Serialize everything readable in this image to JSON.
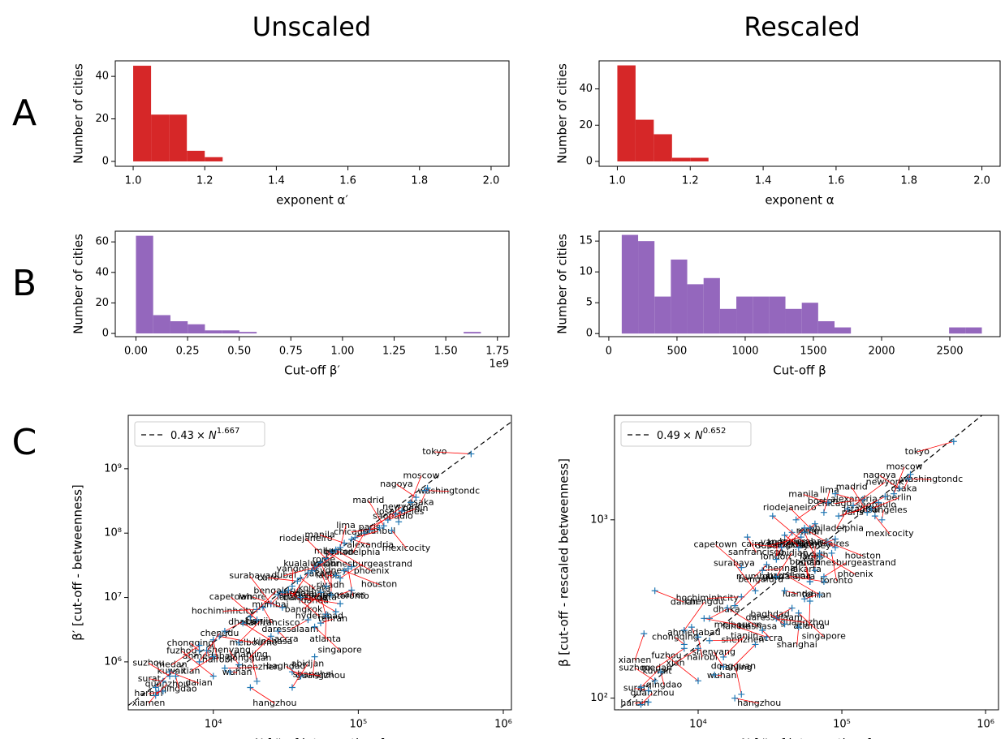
{
  "figure": {
    "columns": [
      "Unscaled",
      "Rescaled"
    ],
    "rows": [
      "A",
      "B",
      "C"
    ]
  },
  "chart_data": [
    {
      "type": "histogram",
      "x_label": "exponent α′",
      "y_label": "Number of cities",
      "color": "#d62728",
      "bins": [
        1.0,
        1.05,
        1.1,
        1.15,
        1.2,
        1.25
      ],
      "values": [
        45,
        22,
        22,
        5,
        2
      ],
      "xlim": [
        0.95,
        2.05
      ],
      "xticks": [
        {
          "value": 1.0,
          "label": "1.0"
        },
        1.2,
        1.4,
        1.6,
        1.8,
        {
          "value": 2.0,
          "label": "2.0"
        }
      ],
      "ylim": [
        -2.3,
        47.3
      ],
      "yticks": [
        0,
        20,
        40
      ]
    },
    {
      "type": "histogram",
      "x_label": "exponent α",
      "y_label": "Number of cities",
      "color": "#d62728",
      "bins": [
        1.0,
        1.05,
        1.1,
        1.15,
        1.2,
        1.25
      ],
      "values": [
        53,
        23,
        15,
        2,
        2
      ],
      "xlim": [
        0.95,
        2.05
      ],
      "xticks": [
        {
          "value": 1.0,
          "label": "1.0"
        },
        1.2,
        1.4,
        1.6,
        1.8,
        {
          "value": 2.0,
          "label": "2.0"
        }
      ],
      "ylim": [
        -2.7,
        55.5
      ],
      "yticks": [
        0,
        20,
        40
      ]
    },
    {
      "type": "histogram",
      "x_label": "Cut-off β′",
      "y_label": "Number of cities",
      "color": "#9467bd",
      "offset_label": "1e9",
      "bins": [
        0,
        0.0835,
        0.167,
        0.2505,
        0.334,
        0.4175,
        0.501,
        0.5845,
        0.668,
        0.7515,
        0.835,
        0.9185,
        1.002,
        1.0855,
        1.169,
        1.2525,
        1.336,
        1.4195,
        1.503,
        1.5865,
        1.67
      ],
      "values": [
        64,
        12,
        8,
        6,
        2,
        2,
        1,
        0,
        0,
        0,
        0,
        0,
        0,
        0,
        0,
        0,
        0,
        0,
        0,
        1
      ],
      "xlim": [
        -0.1,
        1.806
      ],
      "xticks": [
        {
          "value": 0,
          "label": "0.00"
        },
        0.25,
        {
          "value": 0.5,
          "label": "0.50"
        },
        0.75,
        {
          "value": 1,
          "label": "1.00"
        },
        1.25,
        {
          "value": 1.5,
          "label": "1.50"
        },
        1.75
      ],
      "ylim": [
        -2.1,
        67
      ],
      "yticks": [
        0,
        20,
        40,
        60
      ]
    },
    {
      "type": "histogram",
      "x_label": "Cut-off β",
      "y_label": "Number of cities",
      "color": "#9467bd",
      "bins": [
        95,
        215,
        335,
        455,
        575,
        695,
        815,
        935,
        1055,
        1175,
        1295,
        1415,
        1535,
        1655,
        1775,
        1895,
        2015,
        2135,
        2255,
        2375,
        2495,
        2615,
        2735
      ],
      "values": [
        16,
        15,
        6,
        12,
        8,
        9,
        4,
        6,
        6,
        6,
        4,
        5,
        2,
        1,
        0,
        0,
        0,
        0,
        0,
        0,
        1,
        1
      ],
      "xlim": [
        -71,
        2869
      ],
      "xticks": [
        0,
        500,
        1000,
        1500,
        2000,
        2500
      ],
      "ylim": [
        -0.5,
        16.6
      ],
      "yticks": [
        0,
        5,
        10,
        15
      ]
    },
    {
      "type": "scatter",
      "x_label": "N [# of intersections]",
      "y_label": "β′ [cut-off - betweenness]",
      "log_x": true,
      "log_y": true,
      "legend": "upper left",
      "fit": {
        "coef": 0.43,
        "symbol": "× N",
        "exponent": 1.667
      },
      "marker_color": "#1f77b4",
      "leader_color": "#ff0000",
      "label_colors": [
        "#1f77b4",
        "#ff7f0e",
        "#2ca02c",
        "#d62728",
        "#9467bd",
        "#8c564b",
        "#e377c2",
        "#7f7f7f",
        "#bcbd22",
        "#17becf"
      ],
      "xlim": [
        2590,
        1138000
      ],
      "xticks": [
        {
          "value": 10000,
          "label": "10⁴"
        },
        {
          "value": 100000,
          "label": "10⁵"
        },
        {
          "value": 1000000,
          "label": "10⁶"
        }
      ],
      "ylim": [
        180000,
        6760000000
      ],
      "yticks": [
        {
          "value": 1000000,
          "label": "10⁶"
        },
        {
          "value": 10000000,
          "label": "10⁷"
        },
        {
          "value": 100000000,
          "label": "10⁸"
        },
        {
          "value": 1000000000,
          "label": "10⁹"
        }
      ],
      "labels": [
        "tokyo",
        "osaka",
        "washingtondc",
        "nagoya",
        "moscow",
        "paris",
        "saopaulo",
        "berlin",
        "madrid",
        "mexicocity",
        "chicago",
        "losangeles",
        "newyork",
        "philadelphia",
        "alexandria",
        "manila",
        "lima",
        "phoenix",
        "rome",
        "istanbul",
        "riodejaneiro",
        "riyadh",
        "dubai",
        "kualalumpur",
        "boston",
        "london",
        "kolkata",
        "cairo",
        "yangon",
        "hyderabad",
        "mumbai",
        "chennai",
        "milan",
        "toronto",
        "houston",
        "lagos",
        "johannesburgeastrand",
        "surabaya",
        "sanfrancisco",
        "hochiminhcity",
        "jakarta",
        "bengaluru",
        "bangkok",
        "luanda",
        "lahore",
        "sydney",
        "kinshasa",
        "buenosaires",
        "dhaka",
        "capetown",
        "nairobi",
        "melbourne",
        "chongqing",
        "tianjin",
        "dongguan",
        "accra",
        "barcelona",
        "bogota",
        "singapore",
        "daressalaam",
        "tehran",
        "guadalajara",
        "atlanta",
        "dalian",
        "surat",
        "kuwait",
        "xiamen",
        "qingdao",
        "shenzhen",
        "shenyang",
        "chengdu",
        "xian",
        "wuhan",
        "suzhou",
        "nanjing",
        "hangzhou",
        "harbin",
        "quanzhou",
        "fuzhou",
        "shanghai",
        "guangzhou",
        "baghdad",
        "abidjan",
        "medan",
        "ahmedabad"
      ],
      "x": [
        600000,
        300000,
        290000,
        250000,
        230000,
        200000,
        180000,
        160000,
        150000,
        170000,
        140000,
        190000,
        120000,
        110000,
        90000,
        80000,
        75000,
        70000,
        65000,
        95000,
        60000,
        55000,
        52000,
        50000,
        48000,
        45000,
        40000,
        38000,
        35000,
        33000,
        30000,
        28000,
        90000,
        85000,
        80000,
        70000,
        75000,
        25000,
        22000,
        20000,
        60000,
        18000,
        55000,
        40000,
        30000,
        65000,
        16000,
        90000,
        12000,
        20000,
        10000,
        11000,
        8000,
        15000,
        25000,
        28000,
        75000,
        60000,
        50000,
        45000,
        55000,
        70000,
        60000,
        5000,
        4500,
        4000,
        4200,
        5500,
        12000,
        15000,
        8000,
        10000,
        13000,
        5000,
        20000,
        18000,
        4500,
        4000,
        10000,
        50000,
        35000,
        40000,
        35000,
        8000,
        9000
      ],
      "values": [
        1700000000.0,
        500000000.0,
        460000000.0,
        360000000.0,
        300000000.0,
        220000000.0,
        200000000.0,
        160000000.0,
        130000000.0,
        110000000.0,
        120000000.0,
        150000000.0,
        110000000.0,
        100000000.0,
        80000000.0,
        70000000.0,
        60000000.0,
        55000000.0,
        50000000.0,
        85000000.0,
        40000000.0,
        35000000.0,
        30000000.0,
        28000000.0,
        26000000.0,
        24000000.0,
        20000000.0,
        18000000.0,
        15000000.0,
        13000000.0,
        12000000.0,
        11000000.0,
        30000000.0,
        28000000.0,
        26000000.0,
        22000000.0,
        20000000.0,
        8000000.0,
        7000000.0,
        6500000.0,
        15000000.0,
        5000000.0,
        12000000.0,
        10000000.0,
        7000000.0,
        11000000.0,
        4000000.0,
        13000000.0,
        3000000.0,
        4500000.0,
        2200000.0,
        2500000.0,
        1500000.0,
        2000000.0,
        2500000.0,
        3000000.0,
        8000000.0,
        5000000.0,
        3500000.0,
        4500000.0,
        4000000.0,
        6000000.0,
        5500000.0,
        700000.0,
        500000.0,
        400000.0,
        350000.0,
        600000.0,
        800000.0,
        900000.0,
        1000000.0,
        1200000.0,
        700000.0,
        600000.0,
        500000.0,
        400000.0,
        350000.0,
        300000.0,
        600000.0,
        1200000.0,
        700000.0,
        600000.0,
        400000.0,
        1800000.0,
        1500000.0
      ]
    },
    {
      "type": "scatter",
      "x_label": "N [# of intersections]",
      "y_label": "β [cut-off - rescaled betweenness]",
      "log_x": true,
      "log_y": true,
      "legend": "upper left",
      "fit": {
        "coef": 0.49,
        "symbol": "× N",
        "exponent": 0.652
      },
      "marker_color": "#1f77b4",
      "leader_color": "#ff0000",
      "label_colors": [
        "#1f77b4",
        "#ff7f0e",
        "#2ca02c",
        "#d62728",
        "#9467bd",
        "#8c564b",
        "#e377c2",
        "#7f7f7f",
        "#bcbd22",
        "#17becf"
      ],
      "xlim": [
        2620,
        1230000
      ],
      "xticks": [
        {
          "value": 10000,
          "label": "10⁴"
        },
        {
          "value": 100000,
          "label": "10⁵"
        },
        {
          "value": 1000000,
          "label": "10⁶"
        }
      ],
      "ylim": [
        86,
        3855
      ],
      "yticks": [
        {
          "value": 100,
          "label": "10²"
        },
        {
          "value": 1000,
          "label": "10³"
        }
      ],
      "labels": [
        "tokyo",
        "osaka",
        "washingtondc",
        "nagoya",
        "moscow",
        "paris",
        "saopaulo",
        "berlin",
        "madrid",
        "mexicocity",
        "chicago",
        "losangeles",
        "newyork",
        "philadelphia",
        "alexandria",
        "manila",
        "lima",
        "phoenix",
        "rome",
        "istanbul",
        "riodejaneiro",
        "riyadh",
        "dubai",
        "kualalumpur",
        "boston",
        "london",
        "kolkata",
        "cairo",
        "yangon",
        "hyderabad",
        "mumbai",
        "chennai",
        "milan",
        "toronto",
        "houston",
        "lagos",
        "johannesburgeastrand",
        "surabaya",
        "sanfrancisco",
        "hochiminhcity",
        "jakarta",
        "bengaluru",
        "bangkok",
        "luanda",
        "lahore",
        "sydney",
        "kinshasa",
        "buenosaires",
        "dhaka",
        "capetown",
        "nairobi",
        "melbourne",
        "chongqing",
        "tianjin",
        "dongguan",
        "accra",
        "barcelona",
        "bogota",
        "singapore",
        "daressalaam",
        "tehran",
        "guadalajara",
        "atlanta",
        "dalian",
        "surat",
        "kuwait",
        "xiamen",
        "qingdao",
        "shenzhen",
        "shenyang",
        "chengdu",
        "xian",
        "wuhan",
        "suzhou",
        "nanjing",
        "hangzhou",
        "harbin",
        "quanzhou",
        "fuzhou",
        "shanghai",
        "guangzhou",
        "baghdad",
        "abidjan",
        "medan",
        "ahmedabad"
      ],
      "x": [
        600000,
        300000,
        290000,
        250000,
        230000,
        200000,
        180000,
        160000,
        150000,
        170000,
        140000,
        190000,
        120000,
        110000,
        90000,
        80000,
        75000,
        70000,
        65000,
        95000,
        60000,
        55000,
        52000,
        50000,
        48000,
        45000,
        40000,
        38000,
        35000,
        33000,
        30000,
        28000,
        90000,
        85000,
        80000,
        70000,
        75000,
        25000,
        22000,
        20000,
        60000,
        18000,
        55000,
        40000,
        30000,
        65000,
        16000,
        90000,
        12000,
        20000,
        10000,
        11000,
        8000,
        15000,
        25000,
        28000,
        75000,
        60000,
        50000,
        45000,
        55000,
        70000,
        60000,
        5000,
        4500,
        4000,
        4200,
        5500,
        12000,
        15000,
        8000,
        10000,
        13000,
        5000,
        20000,
        18000,
        4500,
        4000,
        10000,
        50000,
        35000,
        40000,
        35000,
        8000,
        9000
      ],
      "values": [
        2750,
        1800,
        1700,
        1500,
        1400,
        1350,
        1250,
        1150,
        1100,
        1050,
        1300,
        1000,
        1200,
        1150,
        1400,
        1250,
        1100,
        650,
        950,
        1050,
        900,
        850,
        800,
        700,
        1000,
        850,
        820,
        700,
        600,
        1050,
        560,
        520,
        700,
        650,
        750,
        620,
        480,
        400,
        800,
        370,
        450,
        330,
        900,
        400,
        220,
        520,
        320,
        780,
        280,
        540,
        220,
        280,
        200,
        170,
        200,
        240,
        450,
        450,
        300,
        320,
        360,
        380,
        350,
        400,
        110,
        115,
        230,
        140,
        210,
        150,
        240,
        190,
        135,
        125,
        105,
        100,
        95,
        92,
        125,
        250,
        280,
        260,
        480,
        190,
        250
      ]
    }
  ]
}
